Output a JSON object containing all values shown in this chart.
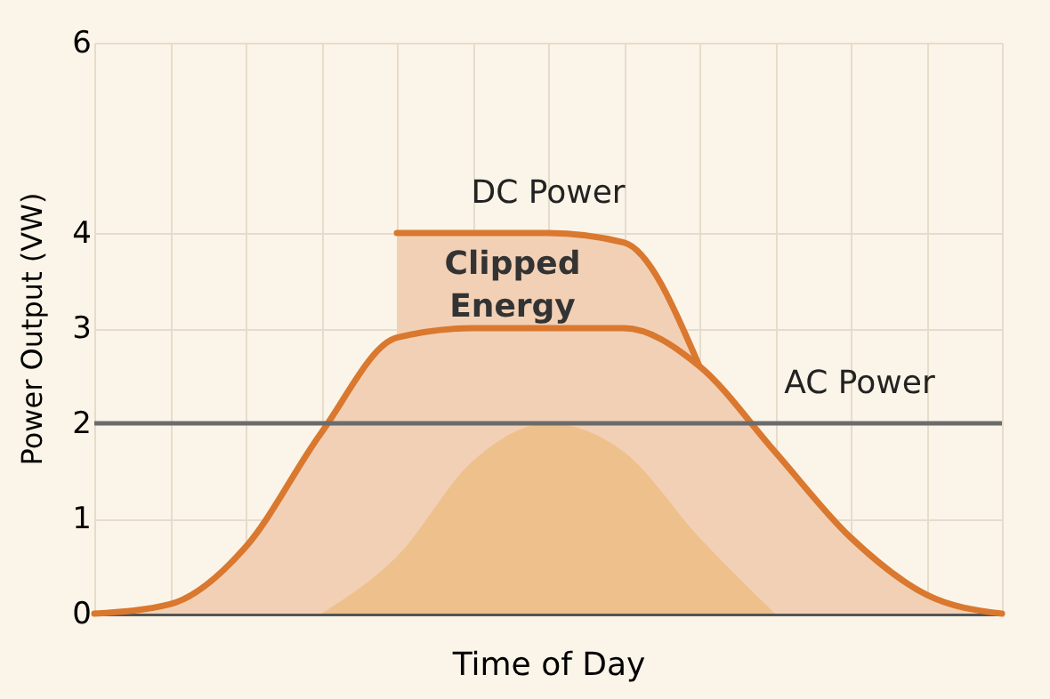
{
  "chart_data": {
    "type": "area",
    "xlabel": "Time of Day",
    "ylabel": "Power Output (VW)",
    "categories": [
      null,
      null,
      null,
      null,
      null,
      null,
      null,
      null,
      null,
      null,
      null,
      null,
      null
    ],
    "series": [
      {
        "name": "DC Power",
        "color": "#d9782e",
        "line_style": "solid",
        "values": [
          null,
          null,
          null,
          null,
          4,
          4,
          4,
          3.9,
          2.6,
          null,
          null,
          null,
          null
        ]
      },
      {
        "color": "#d9782e",
        "line_style": "solid",
        "values": [
          0,
          0.1,
          0.7,
          1.9,
          2.9,
          3,
          3,
          3,
          2.6,
          1.7,
          0.8,
          0.2,
          0
        ]
      },
      {
        "color": "#eec08c",
        "values": [
          null,
          null,
          null,
          0,
          0.6,
          1.6,
          2,
          1.7,
          0.8,
          0,
          null,
          null,
          null
        ]
      }
    ],
    "ref_lines": [
      {
        "axis": "y",
        "value": 2,
        "label": "AC Power",
        "color": "#6b6b6b"
      }
    ],
    "annotations": [
      "Clipped Energy"
    ],
    "ylim": [
      0,
      6
    ],
    "yticks": [
      0,
      1,
      2,
      3,
      4,
      6
    ],
    "grid": true,
    "tick_labels": "y"
  }
}
